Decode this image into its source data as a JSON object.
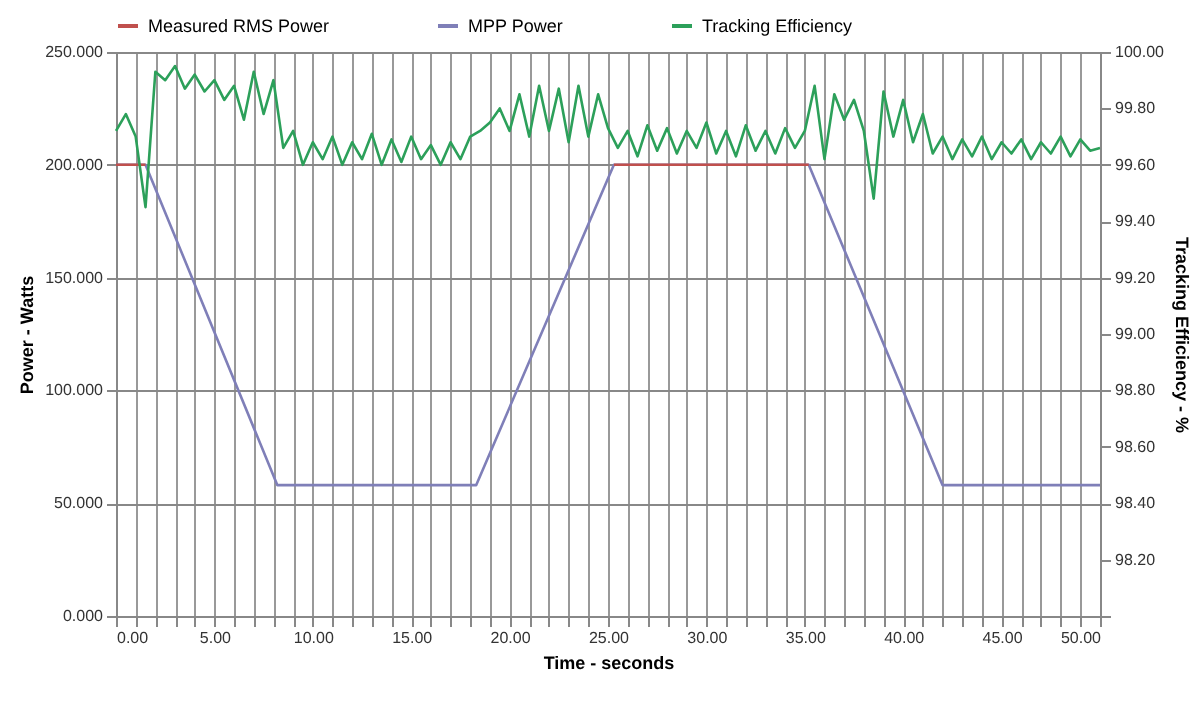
{
  "chart_data": {
    "type": "line",
    "xlabel": "Time - seconds",
    "ylabel": "Power - Watts",
    "y2label": "Tracking Efficiency - %",
    "xlim": [
      0,
      50
    ],
    "xticks": [
      {
        "value": 0,
        "label": "0.00"
      },
      {
        "value": 1,
        "label": null
      },
      {
        "value": 2,
        "label": null
      },
      {
        "value": 3,
        "label": null
      },
      {
        "value": 4,
        "label": null
      },
      {
        "value": 5,
        "label": "5.00"
      },
      {
        "value": 6,
        "label": null
      },
      {
        "value": 7,
        "label": null
      },
      {
        "value": 8,
        "label": null
      },
      {
        "value": 9,
        "label": null
      },
      {
        "value": 10,
        "label": "10.00"
      },
      {
        "value": 11,
        "label": null
      },
      {
        "value": 12,
        "label": null
      },
      {
        "value": 13,
        "label": null
      },
      {
        "value": 14,
        "label": null
      },
      {
        "value": 15,
        "label": "15.00"
      },
      {
        "value": 16,
        "label": null
      },
      {
        "value": 17,
        "label": null
      },
      {
        "value": 18,
        "label": null
      },
      {
        "value": 19,
        "label": null
      },
      {
        "value": 20,
        "label": "20.00"
      },
      {
        "value": 21,
        "label": null
      },
      {
        "value": 22,
        "label": null
      },
      {
        "value": 23,
        "label": null
      },
      {
        "value": 24,
        "label": null
      },
      {
        "value": 25,
        "label": "25.00"
      },
      {
        "value": 26,
        "label": null
      },
      {
        "value": 27,
        "label": null
      },
      {
        "value": 28,
        "label": null
      },
      {
        "value": 29,
        "label": null
      },
      {
        "value": 30,
        "label": "30.00"
      },
      {
        "value": 31,
        "label": null
      },
      {
        "value": 32,
        "label": null
      },
      {
        "value": 33,
        "label": null
      },
      {
        "value": 34,
        "label": null
      },
      {
        "value": 35,
        "label": "35.00"
      },
      {
        "value": 36,
        "label": null
      },
      {
        "value": 37,
        "label": null
      },
      {
        "value": 38,
        "label": null
      },
      {
        "value": 39,
        "label": null
      },
      {
        "value": 40,
        "label": "40.00"
      },
      {
        "value": 41,
        "label": null
      },
      {
        "value": 42,
        "label": null
      },
      {
        "value": 43,
        "label": null
      },
      {
        "value": 44,
        "label": null
      },
      {
        "value": 45,
        "label": "45.00"
      },
      {
        "value": 46,
        "label": null
      },
      {
        "value": 47,
        "label": null
      },
      {
        "value": 48,
        "label": null
      },
      {
        "value": 49,
        "label": null
      },
      {
        "value": 50,
        "label": "50.00"
      }
    ],
    "ylim": [
      0,
      250
    ],
    "yticks": [
      {
        "value": 0,
        "label": "0.000"
      },
      {
        "value": 50,
        "label": "50.000"
      },
      {
        "value": 100,
        "label": "100.000"
      },
      {
        "value": 150,
        "label": "150.000"
      },
      {
        "value": 200,
        "label": "200.000"
      },
      {
        "value": 250,
        "label": "250.000"
      }
    ],
    "y2lim": [
      98,
      100
    ],
    "y2ticks": [
      {
        "value": 98,
        "label": null
      },
      {
        "value": 98.2,
        "label": "98.20"
      },
      {
        "value": 98.4,
        "label": "98.40"
      },
      {
        "value": 98.6,
        "label": "98.60"
      },
      {
        "value": 98.8,
        "label": "98.80"
      },
      {
        "value": 99,
        "label": "99.00"
      },
      {
        "value": 99.2,
        "label": "99.20"
      },
      {
        "value": 99.4,
        "label": "99.40"
      },
      {
        "value": 99.6,
        "label": "99.60"
      },
      {
        "value": 99.8,
        "label": "99.80"
      },
      {
        "value": 100,
        "label": "100.00"
      }
    ],
    "grid": true,
    "legend": "top",
    "marker": "none",
    "line_style": "solid",
    "series": [
      {
        "name": "Measured RMS Power",
        "color": "#c0504d",
        "x": [
          0,
          1.5,
          10,
          25.3,
          35.2
        ],
        "values": [
          200,
          200,
          null,
          200,
          200
        ]
      },
      {
        "name": "MPP Power",
        "color": "#7f7fb8",
        "x": [
          0,
          1.5,
          8.2,
          18.3,
          25.3,
          35.2,
          42,
          50
        ],
        "values": [
          200,
          200,
          58,
          58,
          200,
          200,
          58,
          58
        ]
      },
      {
        "name": "Tracking Efficiency",
        "color": "#2ca05a",
        "axis": "y2",
        "x": [
          0,
          0.5,
          1,
          1.5,
          2,
          2.5,
          3,
          3.5,
          4,
          4.5,
          5,
          5.5,
          6,
          6.5,
          7,
          7.5,
          8,
          8.5,
          9,
          9.5,
          10,
          10.5,
          11,
          11.5,
          12,
          12.5,
          13,
          13.5,
          14,
          14.5,
          15,
          15.5,
          16,
          16.5,
          17,
          17.5,
          18,
          18.5,
          19,
          19.5,
          20,
          20.5,
          21,
          21.5,
          22,
          22.5,
          23,
          23.5,
          24,
          24.5,
          25,
          25.5,
          26,
          26.5,
          27,
          27.5,
          28,
          28.5,
          29,
          29.5,
          30,
          30.5,
          31,
          31.5,
          32,
          32.5,
          33,
          33.5,
          34,
          34.5,
          35,
          35.5,
          36,
          36.5,
          37,
          37.5,
          38,
          38.5,
          39,
          39.5,
          40,
          40.5,
          41,
          41.5,
          42,
          42.5,
          43,
          43.5,
          44,
          44.5,
          45,
          45.5,
          46,
          46.5,
          47,
          47.5,
          48,
          48.5,
          49,
          49.5,
          50
        ],
        "values": [
          99.72,
          99.78,
          99.7,
          99.45,
          99.93,
          99.9,
          99.95,
          99.87,
          99.92,
          99.86,
          99.9,
          99.83,
          99.88,
          99.76,
          99.93,
          99.78,
          99.9,
          99.66,
          99.72,
          99.6,
          99.68,
          99.62,
          99.7,
          99.6,
          99.68,
          99.62,
          99.71,
          99.6,
          99.69,
          99.61,
          99.7,
          99.62,
          99.67,
          99.6,
          99.68,
          99.62,
          99.7,
          99.72,
          99.75,
          99.8,
          99.72,
          99.85,
          99.7,
          99.88,
          99.72,
          99.87,
          99.68,
          99.88,
          99.7,
          99.85,
          99.73,
          99.66,
          99.72,
          99.63,
          99.74,
          99.65,
          99.73,
          99.64,
          99.72,
          99.66,
          99.75,
          99.64,
          99.72,
          99.63,
          99.74,
          99.65,
          99.72,
          99.64,
          99.73,
          99.66,
          99.72,
          99.88,
          99.62,
          99.85,
          99.76,
          99.83,
          99.72,
          99.48,
          99.86,
          99.7,
          99.83,
          99.68,
          99.78,
          99.64,
          99.7,
          99.62,
          99.69,
          99.63,
          99.7,
          99.62,
          99.68,
          99.64,
          99.69,
          99.62,
          99.68,
          99.64,
          99.7,
          99.63,
          99.69,
          99.65,
          99.66
        ]
      }
    ]
  }
}
